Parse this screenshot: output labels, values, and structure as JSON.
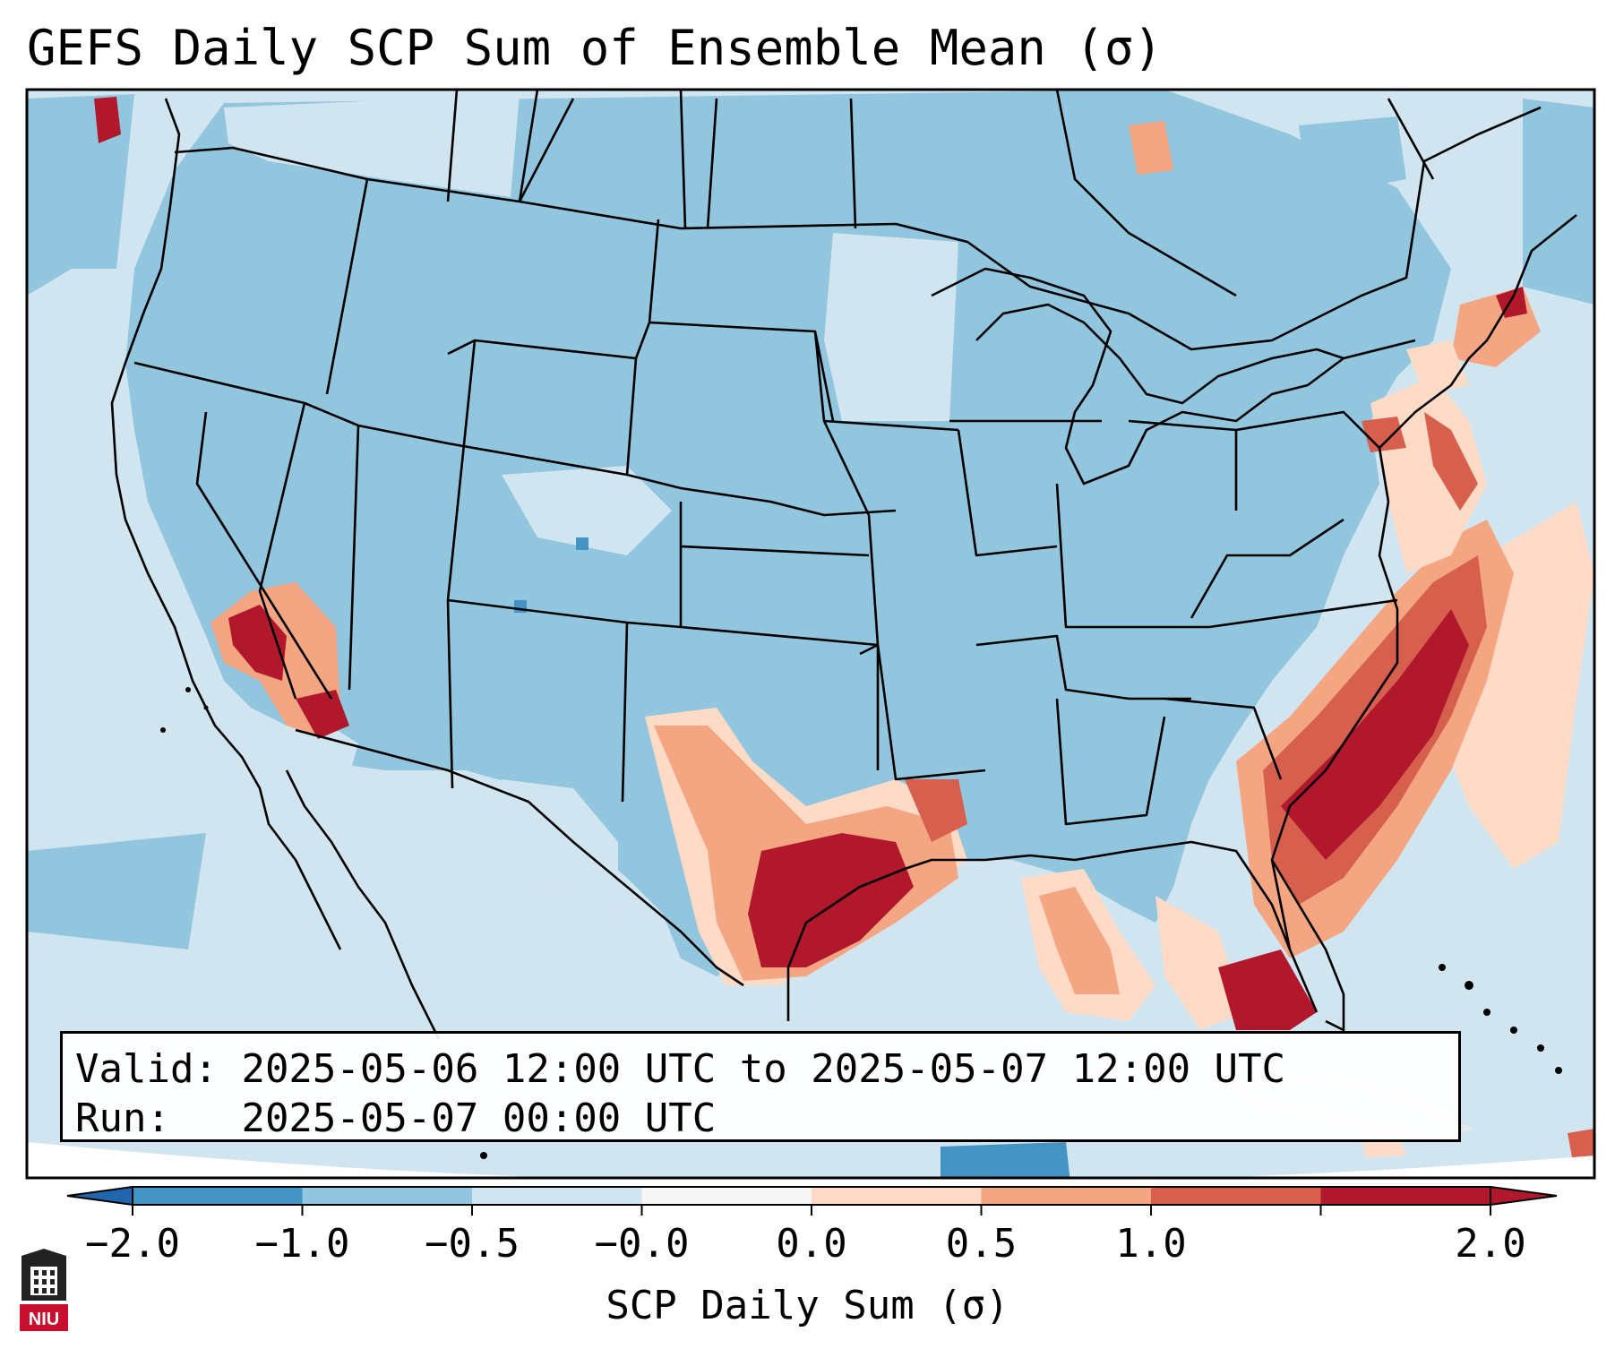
{
  "title": "GEFS Daily SCP Sum of Ensemble Mean (σ)",
  "info": {
    "valid_label": "Valid:",
    "valid_value": "2025-05-06 12:00 UTC to 2025-05-07 12:00 UTC",
    "run_label": "Run:",
    "run_value": "2025-05-07 00:00 UTC"
  },
  "colorbar": {
    "label": "SCP Daily Sum (σ)",
    "ticks": [
      "−2.0",
      "−1.0",
      "−0.5",
      "−0.0",
      "0.0",
      "0.5",
      "1.0",
      "2.0"
    ],
    "colors": [
      "#4393c3",
      "#92c5de",
      "#d1e5f0",
      "#f7f7f7",
      "#fddbc7",
      "#f4a582",
      "#d6604d",
      "#b2182b"
    ],
    "under_color": "#2166ac",
    "over_color": "#b2182b"
  },
  "logo": {
    "text": "NIU",
    "name": "niu-logo"
  },
  "map_colors": {
    "ocean_background": "#d1e5f0",
    "land_background": "#92c5de",
    "border": "#000000"
  }
}
